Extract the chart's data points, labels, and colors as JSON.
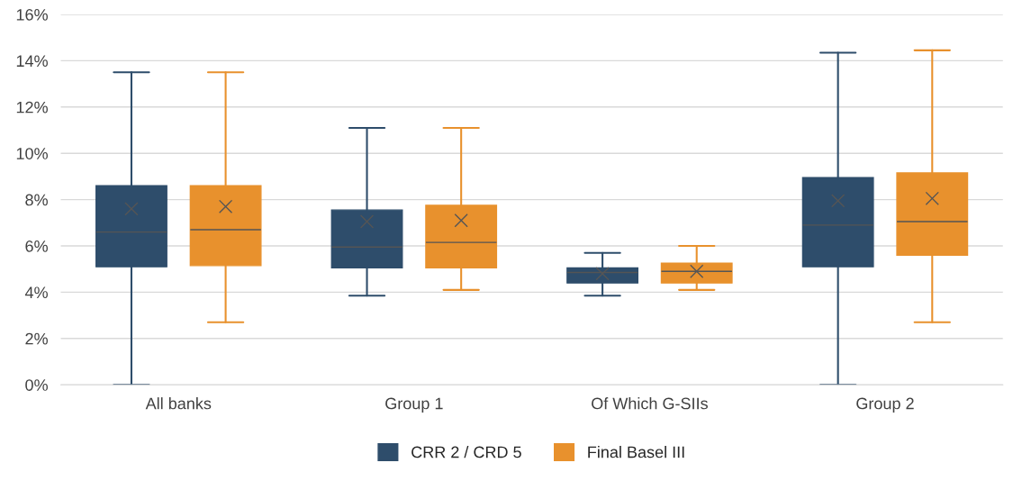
{
  "chart_data": {
    "type": "box",
    "categories": [
      "All banks",
      "Group 1",
      "Of Which G-SIIs",
      "Group 2"
    ],
    "series": [
      {
        "name": "CRR 2 / CRD 5",
        "color": "#2e4d6b",
        "boxes": [
          {
            "low": 0,
            "q1": 5.1,
            "median": 6.6,
            "q3": 8.6,
            "high": 13.5,
            "mean": 7.6
          },
          {
            "low": 3.85,
            "q1": 5.05,
            "median": 5.95,
            "q3": 7.55,
            "high": 11.1,
            "mean": 7.05
          },
          {
            "low": 3.85,
            "q1": 4.4,
            "median": 4.85,
            "q3": 5.05,
            "high": 5.7,
            "mean": 4.8
          },
          {
            "low": 0,
            "q1": 5.1,
            "median": 6.9,
            "q3": 8.95,
            "high": 14.35,
            "mean": 7.95
          }
        ]
      },
      {
        "name": "Final Basel III",
        "color": "#e8912d",
        "boxes": [
          {
            "low": 2.7,
            "q1": 5.15,
            "median": 6.7,
            "q3": 8.6,
            "high": 13.5,
            "mean": 7.7
          },
          {
            "low": 4.1,
            "q1": 5.05,
            "median": 6.15,
            "q3": 7.75,
            "high": 11.1,
            "mean": 7.1
          },
          {
            "low": 4.1,
            "q1": 4.4,
            "median": 4.9,
            "q3": 5.25,
            "high": 6.0,
            "mean": 4.9
          },
          {
            "low": 2.7,
            "q1": 5.6,
            "median": 7.05,
            "q3": 9.15,
            "high": 14.45,
            "mean": 8.05
          }
        ]
      }
    ],
    "ylim": [
      0,
      16
    ],
    "yticks": [
      {
        "value": 0,
        "label": "0%"
      },
      {
        "value": 2,
        "label": "2%"
      },
      {
        "value": 4,
        "label": "4%"
      },
      {
        "value": 6,
        "label": "6%"
      },
      {
        "value": 8,
        "label": "8%"
      },
      {
        "value": 10,
        "label": "10%"
      },
      {
        "value": 12,
        "label": "12%"
      },
      {
        "value": 14,
        "label": "14%"
      },
      {
        "value": 16,
        "label": "16%"
      }
    ],
    "grid": "y",
    "legend": "bottom",
    "marker": "cross"
  }
}
